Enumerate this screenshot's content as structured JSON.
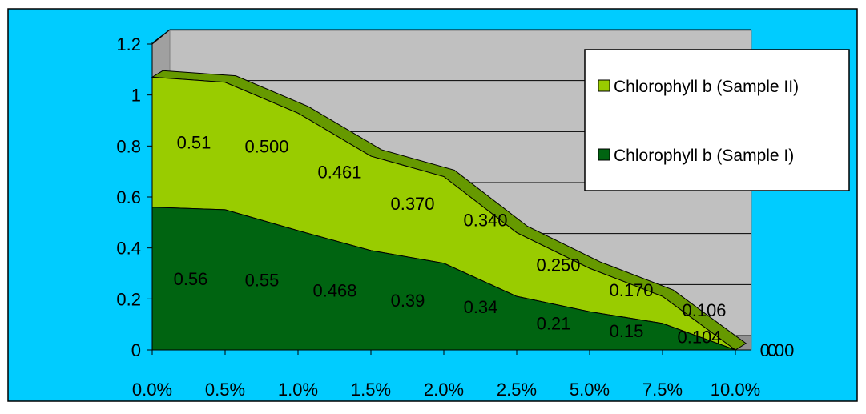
{
  "chart_data": {
    "type": "area",
    "stacked": true,
    "categories": [
      "0.0%",
      "0.5%",
      "1.0%",
      "1.5%",
      "2.0%",
      "2.5%",
      "5.0%",
      "7.5%",
      "10.0%"
    ],
    "series": [
      {
        "name": "Chlorophyll b (Sample I)",
        "values": [
          0.56,
          0.55,
          0.468,
          0.39,
          0.34,
          0.21,
          0.15,
          0.104,
          0
        ],
        "labels": [
          "0.56",
          "0.55",
          "0.468",
          "0.39",
          "0.34",
          "0.21",
          "0.15",
          "0.104",
          "0"
        ]
      },
      {
        "name": "Chlorophyll b (Sample II)",
        "values": [
          0.51,
          0.5,
          0.461,
          0.37,
          0.34,
          0.25,
          0.17,
          0.106,
          0
        ],
        "labels": [
          "0.51",
          "0.500",
          "0.461",
          "0.370",
          "0.340",
          "0.250",
          "0.170",
          "0.106",
          "0.00"
        ]
      }
    ],
    "yticks": [
      "0",
      "0.2",
      "0.4",
      "0.6",
      "0.8",
      "1",
      "1.2"
    ],
    "ylim": [
      0,
      1.2
    ],
    "grid": true,
    "legend_position": "top-right",
    "colors": {
      "background": "#00CCFF",
      "wall": "#C0C0C0",
      "sample_I": "#006411",
      "sample_II": "#99CC00",
      "top_face": "#669900"
    }
  }
}
